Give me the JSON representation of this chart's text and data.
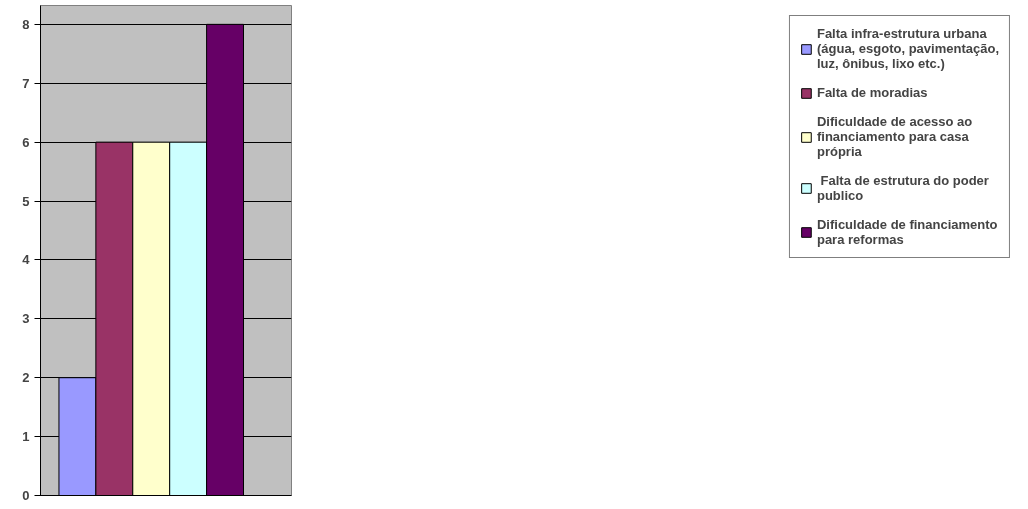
{
  "chart_data": {
    "type": "bar",
    "categories": [
      null
    ],
    "series": [
      {
        "name": "Falta infra-estrutura urbana (água, esgoto, pavimentação, luz, ônibus, lixo etc.)",
        "color": "#9999ff",
        "values": [
          2
        ]
      },
      {
        "name": "Falta de moradias",
        "color": "#993366",
        "values": [
          6
        ]
      },
      {
        "name": "Dificuldade de acesso ao financiamento para casa própria",
        "color": "#ffffcc",
        "values": [
          6
        ]
      },
      {
        "name": " Falta de estrutura do poder publico",
        "color": "#ccffff",
        "values": [
          6
        ]
      },
      {
        "name": "Dificuldade de financiamento para reformas",
        "color": "#660066",
        "values": [
          8
        ]
      }
    ],
    "ylim": [
      0,
      8
    ],
    "yticks": [
      0,
      1,
      2,
      3,
      4,
      5,
      6,
      7,
      8
    ],
    "grid": "y",
    "legend": "right",
    "tick_labels": "y"
  }
}
